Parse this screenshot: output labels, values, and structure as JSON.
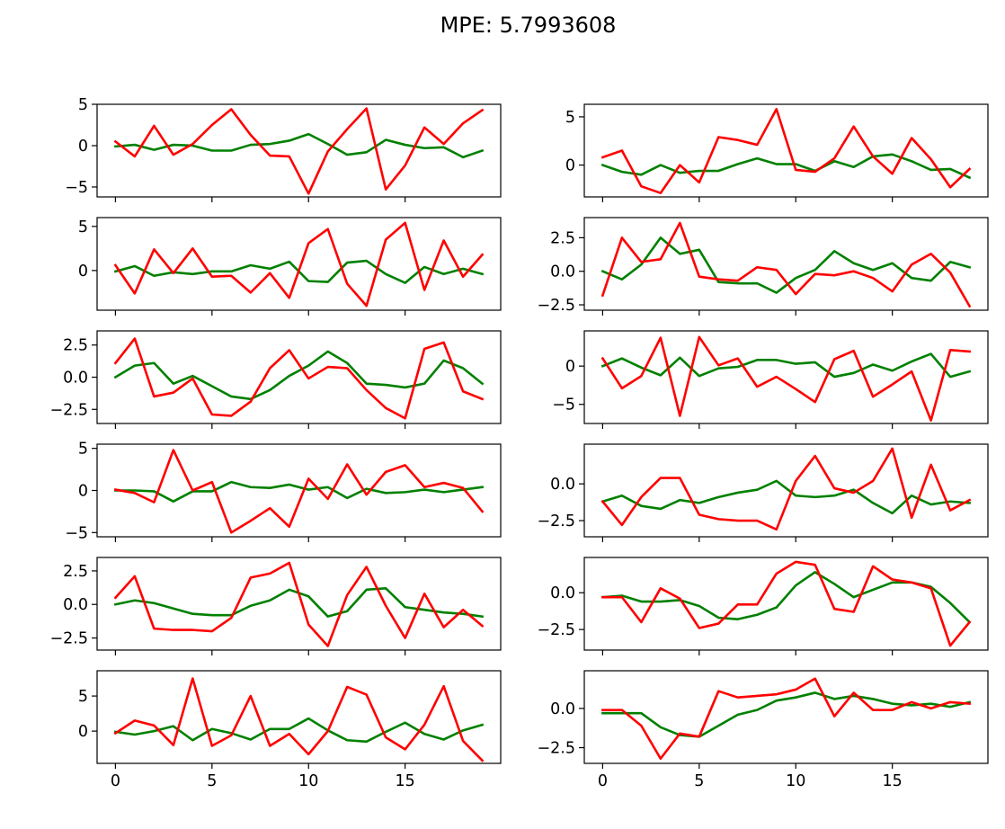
{
  "figure": {
    "title": "MPE: 5.7993608"
  },
  "chart_data": [
    {
      "type": "line",
      "title": "",
      "xlabel": "",
      "ylabel": "",
      "xlim": [
        -0.95,
        19.95
      ],
      "ylim": [
        -6.2,
        5.0
      ],
      "yticks": [
        5,
        0,
        -5
      ],
      "ytick_labels": [
        "5",
        "0",
        "−5"
      ],
      "xticks": [
        0,
        5,
        10,
        15
      ],
      "xtick_labels": [],
      "x": [
        0,
        1,
        2,
        3,
        4,
        5,
        6,
        7,
        8,
        9,
        10,
        11,
        12,
        13,
        14,
        15,
        16,
        17,
        18,
        19
      ],
      "series": [
        {
          "color": "#008000",
          "values": [
            -0.1,
            0.1,
            -0.5,
            0.1,
            0.0,
            -0.6,
            -0.6,
            0.1,
            0.2,
            0.6,
            1.4,
            0.2,
            -1.1,
            -0.8,
            0.7,
            0.1,
            -0.3,
            -0.2,
            -1.4,
            -0.6
          ]
        },
        {
          "color": "#ff0000",
          "values": [
            0.5,
            -1.3,
            2.4,
            -1.1,
            0.2,
            2.5,
            4.4,
            1.3,
            -1.2,
            -1.3,
            -5.8,
            -0.7,
            2.0,
            4.5,
            -5.3,
            -2.4,
            2.2,
            0.2,
            2.7,
            4.3
          ]
        }
      ]
    },
    {
      "type": "line",
      "title": "",
      "xlabel": "",
      "ylabel": "",
      "xlim": [
        -0.95,
        19.95
      ],
      "ylim": [
        -3.3,
        6.3
      ],
      "yticks": [
        5,
        0
      ],
      "ytick_labels": [
        "5",
        "0"
      ],
      "xticks": [
        0,
        5,
        10,
        15
      ],
      "xtick_labels": [],
      "x": [
        0,
        1,
        2,
        3,
        4,
        5,
        6,
        7,
        8,
        9,
        10,
        11,
        12,
        13,
        14,
        15,
        16,
        17,
        18,
        19
      ],
      "series": [
        {
          "color": "#008000",
          "values": [
            0.0,
            -0.7,
            -1.0,
            0.0,
            -0.8,
            -0.6,
            -0.6,
            0.1,
            0.7,
            0.1,
            0.1,
            -0.6,
            0.4,
            -0.2,
            0.9,
            1.1,
            0.4,
            -0.5,
            -0.4,
            -1.3
          ]
        },
        {
          "color": "#ff0000",
          "values": [
            0.8,
            1.5,
            -2.2,
            -2.9,
            0.0,
            -1.8,
            2.9,
            2.6,
            2.1,
            5.8,
            -0.5,
            -0.7,
            0.7,
            4.0,
            0.9,
            -0.9,
            2.8,
            0.6,
            -2.3,
            -0.4
          ]
        }
      ]
    },
    {
      "type": "line",
      "title": "",
      "xlabel": "",
      "ylabel": "",
      "xlim": [
        -0.95,
        19.95
      ],
      "ylim": [
        -4.5,
        6.0
      ],
      "yticks": [
        5,
        0
      ],
      "ytick_labels": [
        "5",
        "0"
      ],
      "xticks": [
        0,
        5,
        10,
        15
      ],
      "xtick_labels": [],
      "x": [
        0,
        1,
        2,
        3,
        4,
        5,
        6,
        7,
        8,
        9,
        10,
        11,
        12,
        13,
        14,
        15,
        16,
        17,
        18,
        19
      ],
      "series": [
        {
          "color": "#008000",
          "values": [
            -0.1,
            0.5,
            -0.6,
            -0.2,
            -0.4,
            -0.1,
            -0.1,
            0.6,
            0.2,
            1.0,
            -1.2,
            -1.3,
            0.9,
            1.1,
            -0.4,
            -1.4,
            0.4,
            -0.4,
            0.2,
            -0.4
          ]
        },
        {
          "color": "#ff0000",
          "values": [
            0.6,
            -2.6,
            2.4,
            -0.3,
            2.5,
            -0.7,
            -0.6,
            -2.5,
            -0.3,
            -3.1,
            3.1,
            4.7,
            -1.5,
            -4.0,
            3.5,
            5.4,
            -2.2,
            3.4,
            -0.7,
            1.8
          ]
        }
      ]
    },
    {
      "type": "line",
      "title": "",
      "xlabel": "",
      "ylabel": "",
      "xlim": [
        -0.95,
        19.95
      ],
      "ylim": [
        -2.9,
        4.0
      ],
      "yticks": [
        2.5,
        0.0,
        -2.5
      ],
      "ytick_labels": [
        "2.5",
        "0.0",
        "−2.5"
      ],
      "xticks": [
        0,
        5,
        10,
        15
      ],
      "xtick_labels": [],
      "x": [
        0,
        1,
        2,
        3,
        4,
        5,
        6,
        7,
        8,
        9,
        10,
        11,
        12,
        13,
        14,
        15,
        16,
        17,
        18,
        19
      ],
      "series": [
        {
          "color": "#008000",
          "values": [
            0.0,
            -0.6,
            0.5,
            2.5,
            1.3,
            1.6,
            -0.8,
            -0.9,
            -0.9,
            -1.6,
            -0.5,
            0.1,
            1.5,
            0.6,
            0.1,
            0.6,
            -0.5,
            -0.7,
            0.7,
            0.3
          ]
        },
        {
          "color": "#ff0000",
          "values": [
            -1.8,
            2.5,
            0.7,
            0.9,
            3.6,
            -0.4,
            -0.6,
            -0.7,
            0.3,
            0.1,
            -1.7,
            -0.2,
            -0.3,
            0.0,
            -0.5,
            -1.5,
            0.5,
            1.3,
            -0.1,
            -2.6
          ]
        }
      ]
    },
    {
      "type": "line",
      "title": "",
      "xlabel": "",
      "ylabel": "",
      "xlim": [
        -0.95,
        19.95
      ],
      "ylim": [
        -3.6,
        3.6
      ],
      "yticks": [
        2.5,
        0.0,
        -2.5
      ],
      "ytick_labels": [
        "2.5",
        "0.0",
        "−2.5"
      ],
      "xticks": [
        0,
        5,
        10,
        15
      ],
      "xtick_labels": [],
      "x": [
        0,
        1,
        2,
        3,
        4,
        5,
        6,
        7,
        8,
        9,
        10,
        11,
        12,
        13,
        14,
        15,
        16,
        17,
        18,
        19
      ],
      "series": [
        {
          "color": "#008000",
          "values": [
            0.0,
            0.9,
            1.1,
            -0.5,
            0.1,
            -0.7,
            -1.5,
            -1.7,
            -1.0,
            0.1,
            0.9,
            2.0,
            1.1,
            -0.5,
            -0.6,
            -0.8,
            -0.5,
            1.3,
            0.7,
            -0.5
          ]
        },
        {
          "color": "#ff0000",
          "values": [
            1.1,
            3.0,
            -1.5,
            -1.2,
            -0.1,
            -2.9,
            -3.0,
            -1.9,
            0.7,
            2.1,
            -0.1,
            0.8,
            0.7,
            -1.0,
            -2.4,
            -3.2,
            2.2,
            2.7,
            -1.1,
            -1.7
          ]
        }
      ]
    },
    {
      "type": "line",
      "title": "",
      "xlabel": "",
      "ylabel": "",
      "xlim": [
        -0.95,
        19.95
      ],
      "ylim": [
        -7.5,
        4.6
      ],
      "yticks": [
        0,
        -5
      ],
      "ytick_labels": [
        "0",
        "−5"
      ],
      "xticks": [
        0,
        5,
        10,
        15
      ],
      "xtick_labels": [],
      "x": [
        0,
        1,
        2,
        3,
        4,
        5,
        6,
        7,
        8,
        9,
        10,
        11,
        12,
        13,
        14,
        15,
        16,
        17,
        18,
        19
      ],
      "series": [
        {
          "color": "#008000",
          "values": [
            0.0,
            1.0,
            -0.2,
            -1.2,
            1.1,
            -1.3,
            -0.3,
            -0.1,
            0.8,
            0.8,
            0.3,
            0.5,
            -1.4,
            -0.9,
            0.2,
            -0.6,
            0.6,
            1.6,
            -1.4,
            -0.7
          ]
        },
        {
          "color": "#ff0000",
          "values": [
            1.0,
            -2.9,
            -1.3,
            3.7,
            -6.5,
            3.8,
            0.1,
            1.0,
            -2.7,
            -1.4,
            -3.0,
            -4.7,
            0.9,
            2.0,
            -4.0,
            -2.4,
            -0.7,
            -7.1,
            2.1,
            1.9
          ]
        }
      ]
    },
    {
      "type": "line",
      "title": "",
      "xlabel": "",
      "ylabel": "",
      "xlim": [
        -0.95,
        19.95
      ],
      "ylim": [
        -5.5,
        5.5
      ],
      "yticks": [
        5,
        0,
        -5
      ],
      "ytick_labels": [
        "5",
        "0",
        "−5"
      ],
      "xticks": [
        0,
        5,
        10,
        15
      ],
      "xtick_labels": [],
      "x": [
        0,
        1,
        2,
        3,
        4,
        5,
        6,
        7,
        8,
        9,
        10,
        11,
        12,
        13,
        14,
        15,
        16,
        17,
        18,
        19
      ],
      "series": [
        {
          "color": "#008000",
          "values": [
            0.0,
            0.0,
            -0.1,
            -1.3,
            -0.1,
            -0.1,
            1.0,
            0.4,
            0.3,
            0.7,
            0.1,
            0.4,
            -0.9,
            0.2,
            -0.3,
            -0.2,
            0.1,
            -0.2,
            0.1,
            0.4
          ]
        },
        {
          "color": "#ff0000",
          "values": [
            0.1,
            -0.3,
            -1.4,
            4.8,
            0.0,
            1.0,
            -5.0,
            -3.6,
            -2.1,
            -4.3,
            1.4,
            -1.0,
            3.1,
            -0.5,
            2.2,
            3.0,
            0.4,
            0.9,
            0.3,
            -2.5
          ]
        }
      ]
    },
    {
      "type": "line",
      "title": "",
      "xlabel": "",
      "ylabel": "",
      "xlim": [
        -0.95,
        19.95
      ],
      "ylim": [
        -3.6,
        2.7
      ],
      "yticks": [
        0.0,
        -2.5
      ],
      "ytick_labels": [
        "0.0",
        "−2.5"
      ],
      "xticks": [
        0,
        5,
        10,
        15
      ],
      "xtick_labels": [],
      "x": [
        0,
        1,
        2,
        3,
        4,
        5,
        6,
        7,
        8,
        9,
        10,
        11,
        12,
        13,
        14,
        15,
        16,
        17,
        18,
        19
      ],
      "series": [
        {
          "color": "#008000",
          "values": [
            -1.2,
            -0.8,
            -1.5,
            -1.7,
            -1.1,
            -1.3,
            -0.9,
            -0.6,
            -0.4,
            0.2,
            -0.8,
            -0.9,
            -0.8,
            -0.4,
            -1.3,
            -2.0,
            -0.8,
            -1.4,
            -1.2,
            -1.3
          ]
        },
        {
          "color": "#ff0000",
          "values": [
            -1.2,
            -2.8,
            -0.9,
            0.4,
            0.4,
            -2.1,
            -2.4,
            -2.5,
            -2.5,
            -3.1,
            0.2,
            1.9,
            -0.3,
            -0.6,
            0.2,
            2.4,
            -2.3,
            1.3,
            -1.8,
            -1.1
          ]
        }
      ]
    },
    {
      "type": "line",
      "title": "",
      "xlabel": "",
      "ylabel": "",
      "xlim": [
        -0.95,
        19.95
      ],
      "ylim": [
        -3.4,
        3.5
      ],
      "yticks": [
        2.5,
        0.0,
        -2.5
      ],
      "ytick_labels": [
        "2.5",
        "0.0",
        "−2.5"
      ],
      "xticks": [
        0,
        5,
        10,
        15
      ],
      "xtick_labels": [],
      "x": [
        0,
        1,
        2,
        3,
        4,
        5,
        6,
        7,
        8,
        9,
        10,
        11,
        12,
        13,
        14,
        15,
        16,
        17,
        18,
        19
      ],
      "series": [
        {
          "color": "#008000",
          "values": [
            0.0,
            0.3,
            0.1,
            -0.3,
            -0.7,
            -0.8,
            -0.8,
            -0.1,
            0.3,
            1.1,
            0.6,
            -0.9,
            -0.5,
            1.1,
            1.2,
            -0.2,
            -0.4,
            -0.6,
            -0.7,
            -0.9
          ]
        },
        {
          "color": "#ff0000",
          "values": [
            0.5,
            2.1,
            -1.8,
            -1.9,
            -1.9,
            -2.0,
            -1.0,
            2.0,
            2.3,
            3.1,
            -1.5,
            -3.1,
            0.7,
            2.8,
            -0.1,
            -2.5,
            0.8,
            -1.7,
            -0.4,
            -1.6
          ]
        }
      ]
    },
    {
      "type": "line",
      "title": "",
      "xlabel": "",
      "ylabel": "",
      "xlim": [
        -0.95,
        19.95
      ],
      "ylim": [
        -3.9,
        2.4
      ],
      "yticks": [
        0.0,
        -2.5
      ],
      "ytick_labels": [
        "0.0",
        "−2.5"
      ],
      "xticks": [
        0,
        5,
        10,
        15
      ],
      "xtick_labels": [],
      "x": [
        0,
        1,
        2,
        3,
        4,
        5,
        6,
        7,
        8,
        9,
        10,
        11,
        12,
        13,
        14,
        15,
        16,
        17,
        18,
        19
      ],
      "series": [
        {
          "color": "#008000",
          "values": [
            -0.3,
            -0.2,
            -0.6,
            -0.6,
            -0.5,
            -0.9,
            -1.7,
            -1.8,
            -1.5,
            -1.0,
            0.5,
            1.4,
            0.6,
            -0.3,
            0.2,
            0.7,
            0.7,
            0.4,
            -0.7,
            -2.0
          ]
        },
        {
          "color": "#ff0000",
          "values": [
            -0.3,
            -0.3,
            -2.0,
            0.3,
            -0.4,
            -2.4,
            -2.1,
            -0.8,
            -0.8,
            1.3,
            2.1,
            1.9,
            -1.1,
            -1.3,
            1.8,
            0.9,
            0.7,
            0.3,
            -3.6,
            -2.0
          ]
        }
      ]
    },
    {
      "type": "line",
      "title": "",
      "xlabel": "",
      "ylabel": "",
      "xlim": [
        -0.95,
        19.95
      ],
      "ylim": [
        -4.6,
        8.6
      ],
      "yticks": [
        5,
        0
      ],
      "ytick_labels": [
        "5",
        "0"
      ],
      "xticks": [
        0,
        5,
        10,
        15
      ],
      "xtick_labels": [
        "0",
        "5",
        "10",
        "15"
      ],
      "x": [
        0,
        1,
        2,
        3,
        4,
        5,
        6,
        7,
        8,
        9,
        10,
        11,
        12,
        13,
        14,
        15,
        16,
        17,
        18,
        19
      ],
      "series": [
        {
          "color": "#008000",
          "values": [
            -0.1,
            -0.5,
            0.0,
            0.7,
            -1.3,
            0.3,
            -0.3,
            -1.2,
            0.3,
            0.3,
            1.8,
            0.1,
            -1.3,
            -1.5,
            -0.1,
            1.2,
            -0.4,
            -1.2,
            0.1,
            0.9
          ]
        },
        {
          "color": "#ff0000",
          "values": [
            -0.3,
            1.5,
            0.8,
            -2.0,
            7.5,
            -2.1,
            -0.6,
            5.0,
            -2.1,
            -0.4,
            -3.3,
            0.0,
            6.3,
            5.2,
            -0.9,
            -2.6,
            0.9,
            6.4,
            -1.4,
            -4.2
          ]
        }
      ]
    },
    {
      "type": "line",
      "title": "",
      "xlabel": "",
      "ylabel": "",
      "xlim": [
        -0.95,
        19.95
      ],
      "ylim": [
        -3.5,
        2.4
      ],
      "yticks": [
        0.0,
        -2.5
      ],
      "ytick_labels": [
        "0.0",
        "−2.5"
      ],
      "xticks": [
        0,
        5,
        10,
        15
      ],
      "xtick_labels": [
        "0",
        "5",
        "10",
        "15"
      ],
      "x": [
        0,
        1,
        2,
        3,
        4,
        5,
        6,
        7,
        8,
        9,
        10,
        11,
        12,
        13,
        14,
        15,
        16,
        17,
        18,
        19
      ],
      "series": [
        {
          "color": "#008000",
          "values": [
            -0.3,
            -0.3,
            -0.3,
            -1.2,
            -1.7,
            -1.8,
            -1.1,
            -0.4,
            -0.1,
            0.5,
            0.7,
            1.0,
            0.6,
            0.8,
            0.6,
            0.3,
            0.2,
            0.3,
            0.1,
            0.4
          ]
        },
        {
          "color": "#ff0000",
          "values": [
            -0.1,
            -0.1,
            -1.1,
            -3.2,
            -1.6,
            -1.8,
            1.1,
            0.7,
            0.8,
            0.9,
            1.2,
            1.9,
            -0.5,
            1.0,
            -0.1,
            -0.1,
            0.4,
            0.0,
            0.4,
            0.3
          ]
        }
      ]
    }
  ]
}
